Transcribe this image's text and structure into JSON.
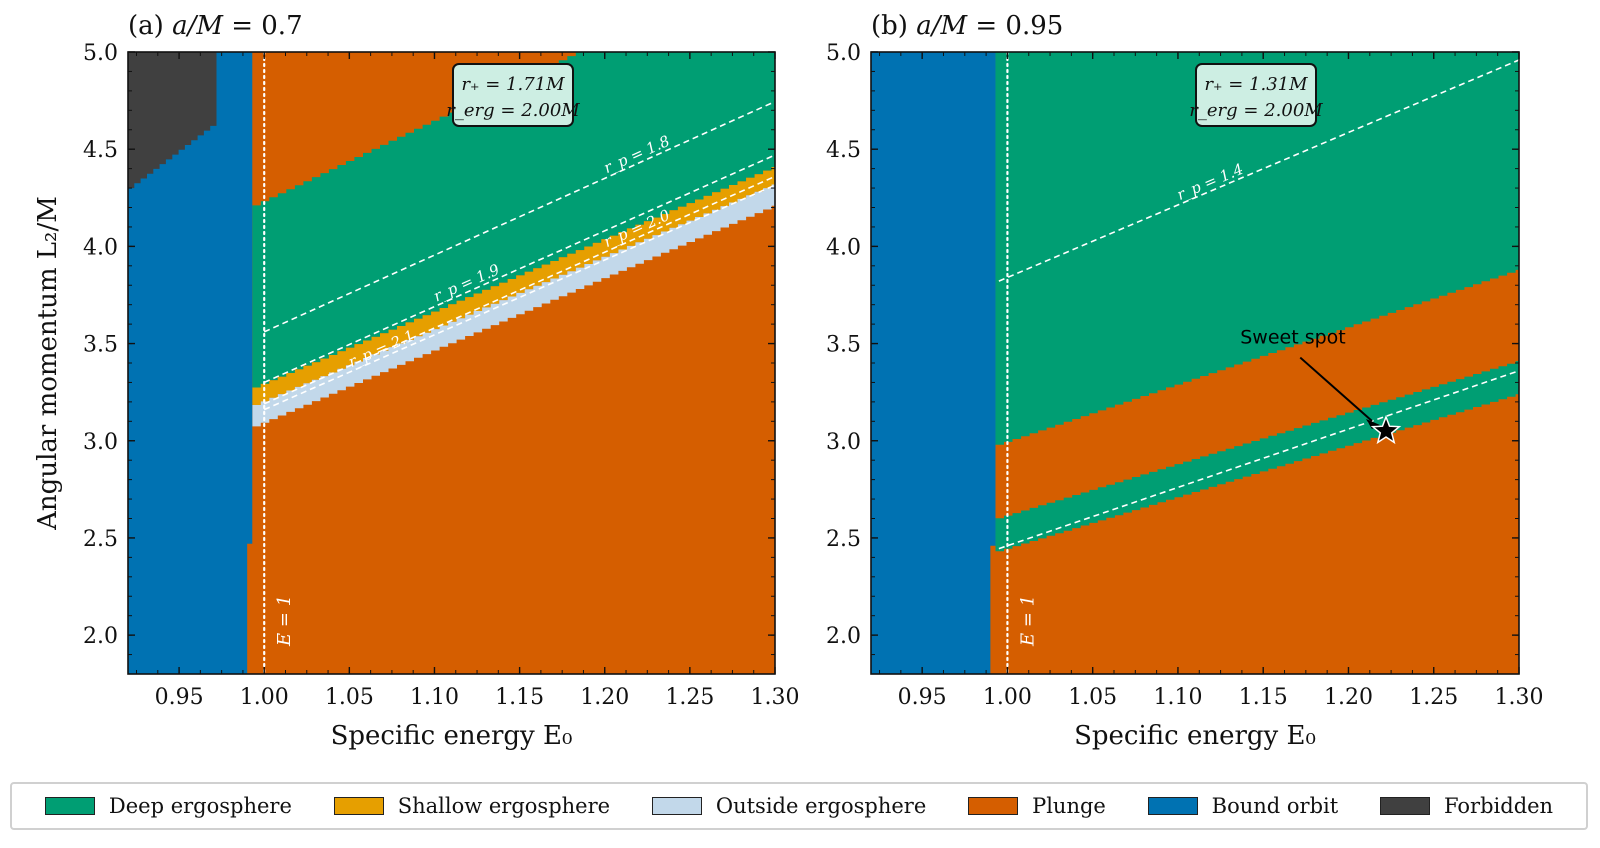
{
  "chart_data": [
    {
      "type": "heatmap",
      "title": "(a) a/M = 0.7",
      "title_prefix": "(a)",
      "spin_label": "a/M",
      "spin_value": "0.7",
      "xlabel": "Specific energy E₀",
      "ylabel": "Angular momentum L₂/M",
      "xlim": [
        0.92,
        1.3
      ],
      "ylim": [
        1.8,
        5.0
      ],
      "xticks": [
        "0.95",
        "1.00",
        "1.05",
        "1.10",
        "1.15",
        "1.20",
        "1.25",
        "1.30"
      ],
      "yticks": [
        "2.0",
        "2.5",
        "3.0",
        "3.5",
        "4.0",
        "4.5",
        "5.0"
      ],
      "reference_line": {
        "E": 1.0,
        "label": "E = 1"
      },
      "info_box": [
        "r₊ = 1.71M",
        "r_erg = 2.00M"
      ],
      "contours": [
        {
          "label": "r_p = 1.8",
          "E0": 1.0,
          "L0": 3.56,
          "slope": 3.95
        },
        {
          "label": "r_p = 1.9",
          "E0": 1.0,
          "L0": 3.3,
          "slope": 3.9
        },
        {
          "label": "r_p = 2.0",
          "E0": 1.0,
          "L0": 3.19,
          "slope": 3.9
        },
        {
          "label": "r_p = 2.1",
          "E0": 1.0,
          "L0": 3.16,
          "slope": 3.85
        }
      ],
      "regions": {
        "bound_edge_E": 0.993,
        "bound_low_edge_E": 0.99,
        "bound_low_L": 2.47,
        "forbidden": {
          "E_min": 0.92,
          "E_max": 0.972,
          "L_bottom_at_Emin": 4.3,
          "L_bottom_at_Emax": 4.62
        },
        "deep_lower_L0": 3.3,
        "deep_lower_slope": 3.72,
        "deep_upper_L0": 4.24,
        "deep_upper_slope": 4.15,
        "shallow_lower_L0": 3.21,
        "shallow_lower_slope": 3.72,
        "outside_lower_L0": 3.1,
        "outside_lower_slope": 3.72
      }
    },
    {
      "type": "heatmap",
      "title": "(b) a/M = 0.95",
      "title_prefix": "(b)",
      "spin_label": "a/M",
      "spin_value": "0.95",
      "xlabel": "Specific energy E₀",
      "xlim": [
        0.92,
        1.3
      ],
      "ylim": [
        1.8,
        5.0
      ],
      "xticks": [
        "0.95",
        "1.00",
        "1.05",
        "1.10",
        "1.15",
        "1.20",
        "1.25",
        "1.30"
      ],
      "yticks": [
        "2.0",
        "2.5",
        "3.0",
        "3.5",
        "4.0",
        "4.5",
        "5.0"
      ],
      "reference_line": {
        "E": 1.0,
        "label": "E = 1"
      },
      "info_box": [
        "r₊ = 1.31M",
        "r_erg = 2.00M"
      ],
      "contours": [
        {
          "label": "r_p = 1.4",
          "E0": 0.995,
          "L0": 3.84,
          "slope": 3.73
        },
        {
          "label": "",
          "E0": 0.995,
          "L0": 2.46,
          "slope": 3.0
        }
      ],
      "annotation": {
        "text": "Sweet spot",
        "E": 1.222,
        "L": 3.05,
        "text_E": 1.16,
        "text_L": 3.5
      },
      "regions": {
        "bound_edge_E": 0.993,
        "bound_low_edge_E": 0.99,
        "bound_low_L": 2.46,
        "deep_upper_L0": 3.0,
        "deep_upper_slope": 2.95,
        "plunge_lower_L0": 2.62,
        "plunge_lower_slope": 2.65,
        "deep2_lower_L0": 2.45,
        "deep2_lower_slope": 2.65
      }
    }
  ],
  "legend": [
    {
      "label": "Deep ergosphere",
      "color": "#009e73"
    },
    {
      "label": "Shallow ergosphere",
      "color": "#e69f00"
    },
    {
      "label": "Outside ergosphere",
      "color": "#c2d8ea"
    },
    {
      "label": "Plunge",
      "color": "#d55e00"
    },
    {
      "label": "Bound orbit",
      "color": "#0072b2"
    },
    {
      "label": "Forbidden",
      "color": "#404040"
    }
  ]
}
